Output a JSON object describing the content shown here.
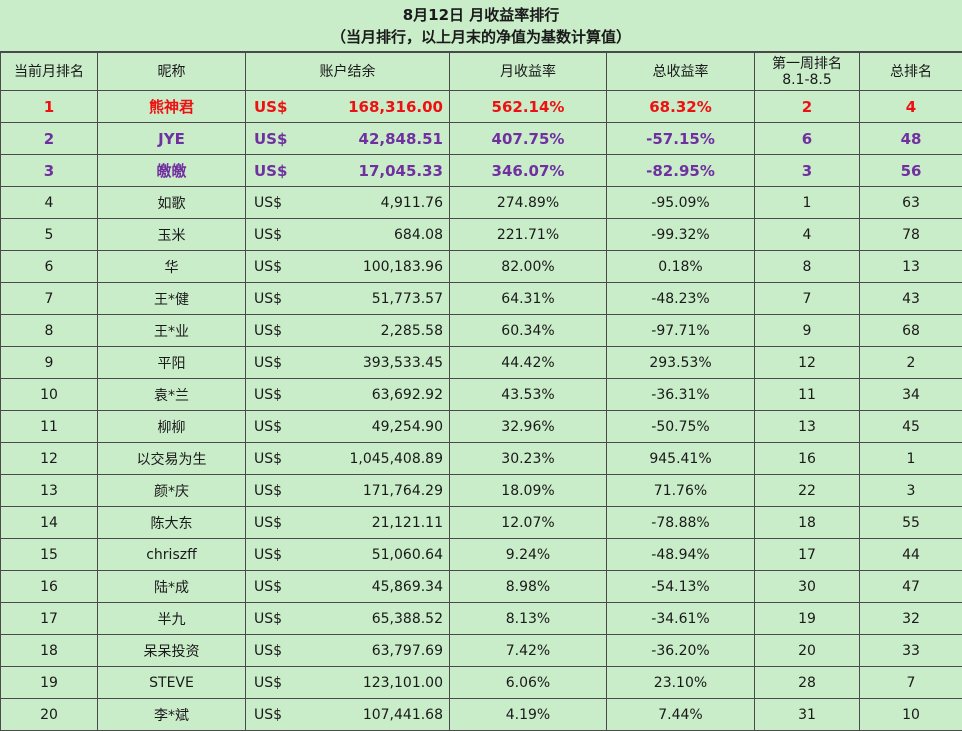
{
  "title": {
    "line1": "8月12日 月收益率排行",
    "line2": "（当月排行，以上月末的净值为基数计算值）"
  },
  "headers": {
    "rank": "当前月排名",
    "nickname": "昵称",
    "balance": "账户结余",
    "monthly_return": "月收益率",
    "total_return": "总收益率",
    "week1_rank_line1": "第一周排名",
    "week1_rank_line2": "8.1-8.5",
    "overall_rank": "总排名"
  },
  "colors": {
    "background": "#c9ecc9",
    "first_place": "#ee1111",
    "second_third_place": "#7030a0"
  },
  "rows": [
    {
      "rank": "1",
      "name": "熊神君",
      "currency": "US$",
      "balance": "168,316.00",
      "monthly": "562.14%",
      "total": "68.32%",
      "week1": "2",
      "overall": "4"
    },
    {
      "rank": "2",
      "name": "JYE",
      "currency": "US$",
      "balance": "42,848.51",
      "monthly": "407.75%",
      "total": "-57.15%",
      "week1": "6",
      "overall": "48"
    },
    {
      "rank": "3",
      "name": "皦皦",
      "currency": "US$",
      "balance": "17,045.33",
      "monthly": "346.07%",
      "total": "-82.95%",
      "week1": "3",
      "overall": "56"
    },
    {
      "rank": "4",
      "name": "如歌",
      "currency": "US$",
      "balance": "4,911.76",
      "monthly": "274.89%",
      "total": "-95.09%",
      "week1": "1",
      "overall": "63"
    },
    {
      "rank": "5",
      "name": "玉米",
      "currency": "US$",
      "balance": "684.08",
      "monthly": "221.71%",
      "total": "-99.32%",
      "week1": "4",
      "overall": "78"
    },
    {
      "rank": "6",
      "name": "华",
      "currency": "US$",
      "balance": "100,183.96",
      "monthly": "82.00%",
      "total": "0.18%",
      "week1": "8",
      "overall": "13"
    },
    {
      "rank": "7",
      "name": "王*健",
      "currency": "US$",
      "balance": "51,773.57",
      "monthly": "64.31%",
      "total": "-48.23%",
      "week1": "7",
      "overall": "43"
    },
    {
      "rank": "8",
      "name": "王*业",
      "currency": "US$",
      "balance": "2,285.58",
      "monthly": "60.34%",
      "total": "-97.71%",
      "week1": "9",
      "overall": "68"
    },
    {
      "rank": "9",
      "name": "平阳",
      "currency": "US$",
      "balance": "393,533.45",
      "monthly": "44.42%",
      "total": "293.53%",
      "week1": "12",
      "overall": "2"
    },
    {
      "rank": "10",
      "name": "袁*兰",
      "currency": "US$",
      "balance": "63,692.92",
      "monthly": "43.53%",
      "total": "-36.31%",
      "week1": "11",
      "overall": "34"
    },
    {
      "rank": "11",
      "name": "柳柳",
      "currency": "US$",
      "balance": "49,254.90",
      "monthly": "32.96%",
      "total": "-50.75%",
      "week1": "13",
      "overall": "45"
    },
    {
      "rank": "12",
      "name": "以交易为生",
      "currency": "US$",
      "balance": "1,045,408.89",
      "monthly": "30.23%",
      "total": "945.41%",
      "week1": "16",
      "overall": "1"
    },
    {
      "rank": "13",
      "name": "颜*庆",
      "currency": "US$",
      "balance": "171,764.29",
      "monthly": "18.09%",
      "total": "71.76%",
      "week1": "22",
      "overall": "3"
    },
    {
      "rank": "14",
      "name": "陈大东",
      "currency": "US$",
      "balance": "21,121.11",
      "monthly": "12.07%",
      "total": "-78.88%",
      "week1": "18",
      "overall": "55"
    },
    {
      "rank": "15",
      "name": "chriszff",
      "currency": "US$",
      "balance": "51,060.64",
      "monthly": "9.24%",
      "total": "-48.94%",
      "week1": "17",
      "overall": "44"
    },
    {
      "rank": "16",
      "name": "陆*成",
      "currency": "US$",
      "balance": "45,869.34",
      "monthly": "8.98%",
      "total": "-54.13%",
      "week1": "30",
      "overall": "47"
    },
    {
      "rank": "17",
      "name": "半九",
      "currency": "US$",
      "balance": "65,388.52",
      "monthly": "8.13%",
      "total": "-34.61%",
      "week1": "19",
      "overall": "32"
    },
    {
      "rank": "18",
      "name": "呆呆投资",
      "currency": "US$",
      "balance": "63,797.69",
      "monthly": "7.42%",
      "total": "-36.20%",
      "week1": "20",
      "overall": "33"
    },
    {
      "rank": "19",
      "name": "STEVE",
      "currency": "US$",
      "balance": "123,101.00",
      "monthly": "6.06%",
      "total": "23.10%",
      "week1": "28",
      "overall": "7"
    },
    {
      "rank": "20",
      "name": "李*斌",
      "currency": "US$",
      "balance": "107,441.68",
      "monthly": "4.19%",
      "total": "7.44%",
      "week1": "31",
      "overall": "10"
    }
  ]
}
